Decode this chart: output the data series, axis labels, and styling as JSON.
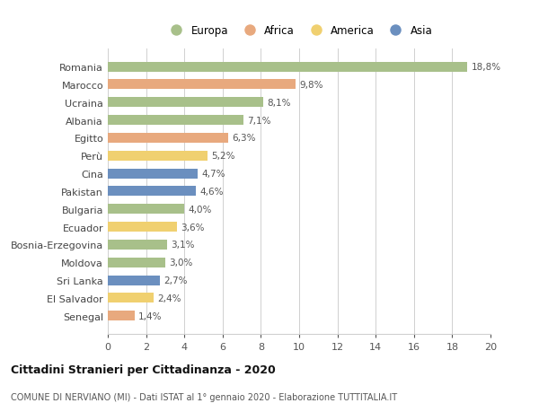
{
  "countries": [
    "Romania",
    "Marocco",
    "Ucraina",
    "Albania",
    "Egitto",
    "Perù",
    "Cina",
    "Pakistan",
    "Bulgaria",
    "Ecuador",
    "Bosnia-Erzegovina",
    "Moldova",
    "Sri Lanka",
    "El Salvador",
    "Senegal"
  ],
  "values": [
    18.8,
    9.8,
    8.1,
    7.1,
    6.3,
    5.2,
    4.7,
    4.6,
    4.0,
    3.6,
    3.1,
    3.0,
    2.7,
    2.4,
    1.4
  ],
  "labels": [
    "18,8%",
    "9,8%",
    "8,1%",
    "7,1%",
    "6,3%",
    "5,2%",
    "4,7%",
    "4,6%",
    "4,0%",
    "3,6%",
    "3,1%",
    "3,0%",
    "2,7%",
    "2,4%",
    "1,4%"
  ],
  "continents": [
    "Europa",
    "Africa",
    "Europa",
    "Europa",
    "Africa",
    "America",
    "Asia",
    "Asia",
    "Europa",
    "America",
    "Europa",
    "Europa",
    "Asia",
    "America",
    "Africa"
  ],
  "colors": {
    "Europa": "#a8c08a",
    "Africa": "#e8a97e",
    "America": "#f0d070",
    "Asia": "#6b8fbf"
  },
  "legend_order": [
    "Europa",
    "Africa",
    "America",
    "Asia"
  ],
  "xlim": [
    0,
    20
  ],
  "xticks": [
    0,
    2,
    4,
    6,
    8,
    10,
    12,
    14,
    16,
    18,
    20
  ],
  "title": "Cittadini Stranieri per Cittadinanza - 2020",
  "subtitle": "COMUNE DI NERVIANO (MI) - Dati ISTAT al 1° gennaio 2020 - Elaborazione TUTTITALIA.IT",
  "background_color": "#ffffff",
  "grid_color": "#d0d0d0",
  "bar_height": 0.55
}
